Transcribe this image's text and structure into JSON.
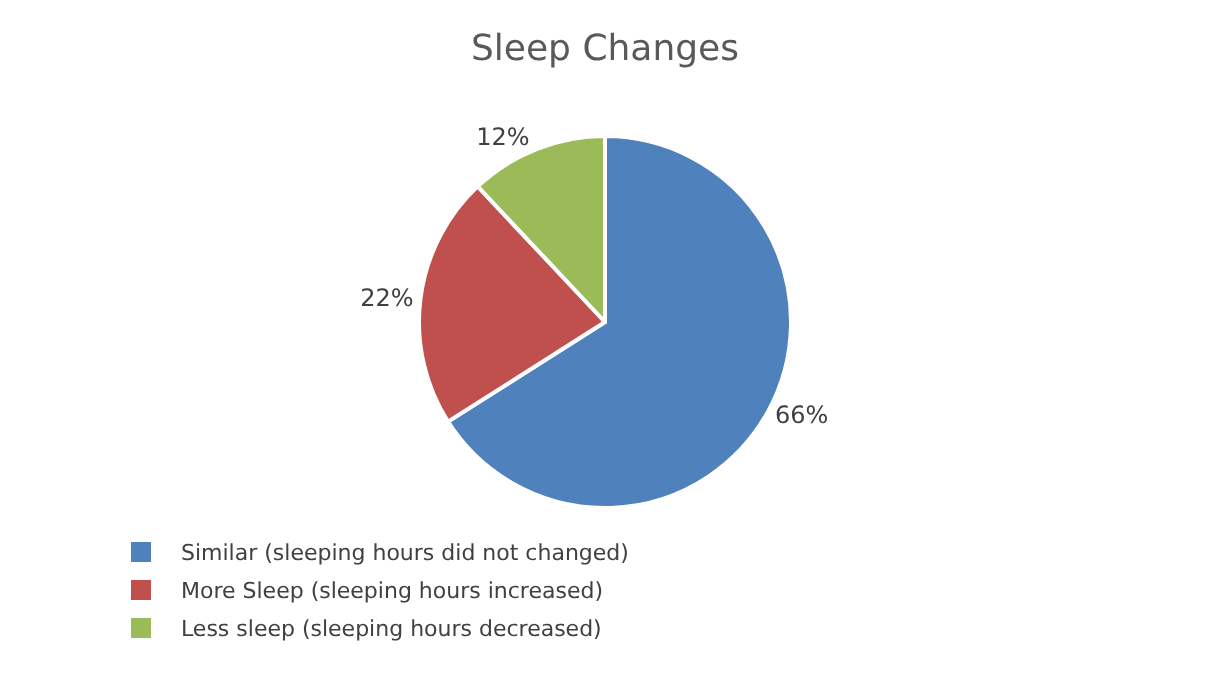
{
  "chart_data": {
    "type": "pie",
    "title": "Sleep Changes",
    "categories": [
      "Similar (sleeping hours did not changed)",
      "More Sleep (sleeping hours increased)",
      "Less sleep (sleeping hours decreased)"
    ],
    "values": [
      66,
      22,
      12
    ],
    "colors": [
      "#4f81bd",
      "#c0504d",
      "#9bbb59"
    ],
    "value_labels": [
      "66%",
      "22%",
      "12%"
    ],
    "legend": "bottom"
  }
}
